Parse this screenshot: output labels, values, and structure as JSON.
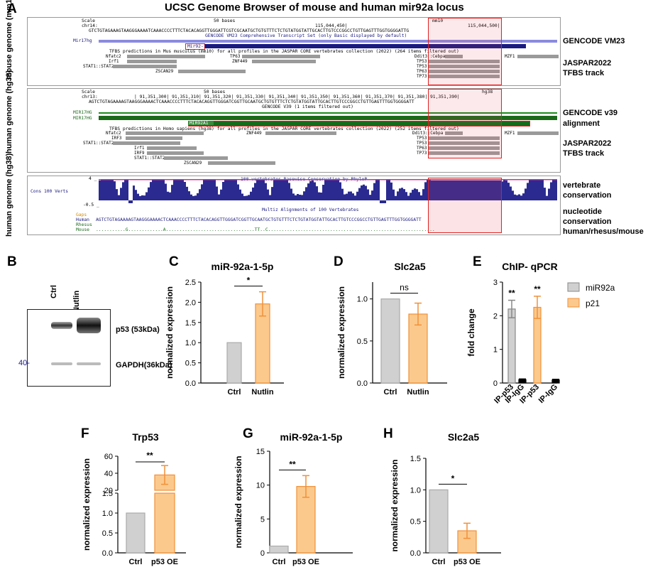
{
  "panels": {
    "A": "A",
    "B": "B",
    "C": "C",
    "D": "D",
    "E": "E",
    "F": "F",
    "G": "G",
    "H": "H"
  },
  "panel_a": {
    "title": "UCSC Genome Browser of mouse and human mir92a locus",
    "mouse_label": "mouse genome (mm10)",
    "human_label_1": "human genome (hg38)",
    "human_label_2": "human genome (hg38)",
    "mouse": {
      "scale": "Scale",
      "chrom": "chr14:",
      "bases": "50 bases",
      "assembly": "mm10",
      "coord1": "115,044,450|",
      "coord2": "115,044,500|",
      "seq": "GTCTGTAGAAAGTAAGGGAAAATCAAACCCCTTTCTACACAGGTTGGGATTCGTCGCAATGCTGTGTTTCTCTGTATGGTATTGCACTTGTCCCGGCCTGTTGAGTTTGGTGGGGATTG",
      "gencode": "GENCODE VM23 Comprehensive Transcript Set (only Basic displayed by default)",
      "mir17hg": "Mir17hg",
      "mir92": "Mir92-1",
      "tfbs": "TFBS predictions in Mus musculus (mm10) for all profiles in the JASPAR CORE vertebrates collection (2022) (264 items filtered out)",
      "tf_names": [
        "Nfatc2",
        "TP63",
        "Irf1",
        "ZNF449",
        "STAT1::STAT2",
        "ZSCAN29",
        "Ddit3::Cebpa",
        "TP53",
        "TP53",
        "TP63",
        "TP73",
        "MZF1"
      ]
    },
    "human": {
      "scale": "Scale",
      "chrom": "chr13:",
      "bases": "50 bases",
      "assembly": "hg38",
      "coords": "| 91,351,300| 91,351,310| 91,351,320| 91,351,330| 91,351,340| 91,351,350| 91,351,360| 91,351,370| 91,351,380| 91,351,390|",
      "seq": "AGTCTGTAGAAAAGTAAGGGAAAACTCAAACCCCTTTCTACACAGGTTGGGATCGGTTGCAATGCTGTGTTTCTCTGTATGGTATTGCACTTGTCCCGGCCTGTTGAGTTTGGTGGGGATT",
      "gencode": "GENCODE V39 (1 items filtered out)",
      "mir17hg_1": "MIR17HG",
      "mir17hg_2": "MIR17HG",
      "mir92a1": "MIR92A1",
      "tfbs": "TFBS predictions in Homo sapiens (hg38) for all profiles in the JASPAR CORE vertebrates collection (2022) (252 items filtered out)",
      "tf_names": [
        "Nfatc2",
        "IRF3",
        "STAT1::STAT2",
        "Irf1",
        "IRF9",
        "STAT1::STAT2",
        "ZSCAN29",
        "ZNF449",
        "Ddit3::Cebpa",
        "TP53",
        "TP53",
        "TP63",
        "TP73",
        "MZF1"
      ]
    },
    "cons": {
      "top": "4 _",
      "bottom": "-0.5 _",
      "track_name": "Cons 100 Verts",
      "header": "100 vertebrates Basewise Conservation by PhyloP",
      "multiz": "Multiz Alignments of 100 Vertebrates",
      "rows": [
        "Gaps",
        "Human",
        "Rhesus",
        "Mouse"
      ],
      "human_seq": "AGTCTGTAGAAAAGTAAGGGAAAACTCAAACCCCTTTCTACACAGGTTGGGATCGGTTGCAATGCTGTGTTTCTCTGTATGGTATTGCACTTGTCCCGGCCTGTTGAGTTTGGTGGGGATT",
      "mouse_seq": "...........G.............A.................................TT..C.............................................................."
    },
    "side_labels": [
      "GENCODE VM23",
      "JASPAR2022",
      "TFBS track",
      "GENCODE v39",
      "alignment",
      "JASPAR2022",
      "TFBS track",
      "vertebrate",
      "conservation",
      "nucleotide",
      "conservation",
      "human/rhesus/mouse"
    ]
  },
  "panel_b": {
    "ctrl": "Ctrl",
    "nutlin": "Nutlin",
    "p53": "p53 (53kDa)",
    "gapdh": "GAPDH(36kDa)",
    "marker": "40-"
  },
  "colors": {
    "ctrl": "#d0d0d0",
    "treat": "#fcc98d",
    "treat_edge": "#f0913a",
    "black": "#000000",
    "red": "#e0201f",
    "navy": "#1a1a80",
    "magenta": "#d62e9c"
  },
  "chart_data": [
    {
      "id": "C",
      "type": "bar",
      "title": "miR-92a-1-5p",
      "ylabel": "normalized expression",
      "categories": [
        "Ctrl",
        "Nutlin"
      ],
      "values": [
        1.0,
        1.96
      ],
      "errors": [
        0,
        0.3
      ],
      "ylim": [
        0,
        2.5
      ],
      "yticks": [
        0.0,
        0.5,
        1.0,
        1.5,
        2.0,
        2.5
      ],
      "ticklabels": [
        "0.0",
        "0.5",
        "1.0",
        "1.5",
        "2.0",
        "2.5"
      ],
      "sig": "*"
    },
    {
      "id": "D",
      "type": "bar",
      "title": "Slc2a5",
      "ylabel": "normalized expression",
      "categories": [
        "Ctrl",
        "Nutlin"
      ],
      "values": [
        1.0,
        0.82
      ],
      "errors": [
        0,
        0.13
      ],
      "ylim": [
        0,
        1.2
      ],
      "yticks": [
        0.0,
        0.5,
        1.0
      ],
      "ticklabels": [
        "0.0",
        "0.5",
        "1.0"
      ],
      "sig": "ns"
    },
    {
      "id": "E",
      "type": "bar",
      "title": "ChIP- qPCR",
      "ylabel": "fold change",
      "categories": [
        "IP-p53",
        "IP-IgG",
        "IP-p53",
        "IP-IgG"
      ],
      "values": [
        2.2,
        0.1,
        2.25,
        0.09
      ],
      "errors": [
        0.26,
        0.02,
        0.33,
        0.02
      ],
      "ylim": [
        0,
        3
      ],
      "yticks": [
        0,
        1,
        2,
        3
      ],
      "ticklabels": [
        "0",
        "1",
        "2",
        "3"
      ],
      "legend": [
        "miR92a",
        "p21"
      ],
      "sig": [
        "**",
        "**"
      ]
    },
    {
      "id": "F",
      "type": "bar",
      "title": "Trp53",
      "ylabel": "normalized expression",
      "categories": [
        "Ctrl",
        "p53 OE"
      ],
      "values": [
        1.0,
        38
      ],
      "errors": [
        0,
        11
      ],
      "ylim_lower": [
        0,
        1.5
      ],
      "ylim_upper": [
        20,
        60
      ],
      "yticks_lower": [
        0.0,
        0.5,
        1.0,
        1.5
      ],
      "ticklabels_lower": [
        "0.0",
        "0.5",
        "1.0",
        "1.5"
      ],
      "yticks_upper": [
        20,
        40,
        60
      ],
      "ticklabels_upper": [
        "20",
        "40",
        "60"
      ],
      "sig": "**"
    },
    {
      "id": "G",
      "type": "bar",
      "title": "miR-92a-1-5p",
      "ylabel": "normalized expression",
      "categories": [
        "Ctrl",
        "p53 OE"
      ],
      "values": [
        1.0,
        9.8
      ],
      "errors": [
        0,
        1.6
      ],
      "ylim": [
        0,
        15
      ],
      "yticks": [
        0,
        5,
        10,
        15
      ],
      "ticklabels": [
        "0",
        "5",
        "10",
        "15"
      ],
      "sig": "**"
    },
    {
      "id": "H",
      "type": "bar",
      "title": "Slc2a5",
      "ylabel": "normalized expression",
      "categories": [
        "Ctrl",
        "p53 OE"
      ],
      "values": [
        1.0,
        0.35
      ],
      "errors": [
        0,
        0.12
      ],
      "ylim": [
        0,
        1.5
      ],
      "yticks": [
        0.0,
        0.5,
        1.0,
        1.5
      ],
      "ticklabels": [
        "0.0",
        "0.5",
        "1.0",
        "1.5"
      ],
      "sig": "*"
    }
  ]
}
